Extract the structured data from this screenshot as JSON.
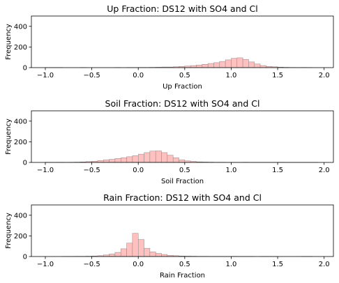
{
  "chart_data": [
    {
      "type": "histogram",
      "title": "Up Fraction: DS12 with SO4 and Cl",
      "xlabel": "Up Fraction",
      "ylabel": "Frequency",
      "xlim": [
        -1.15,
        2.1
      ],
      "ylim": [
        0,
        500
      ],
      "xticks": [
        -1.0,
        -0.5,
        0.0,
        0.5,
        1.0,
        1.5,
        2.0
      ],
      "xtick_labels": [
        "−1.0",
        "−0.5",
        "0.0",
        "0.5",
        "1.0",
        "1.5",
        "2.0"
      ],
      "yticks": [
        0,
        200,
        400
      ],
      "ytick_labels": [
        "0",
        "200",
        "400"
      ],
      "bin_edges_start": -1.0,
      "bin_width": 0.0625,
      "bar_color": "#ffc0c0",
      "counts": [
        1,
        1,
        1,
        0,
        0,
        0,
        1,
        0,
        0,
        0,
        0,
        0,
        1,
        0,
        1,
        1,
        2,
        2,
        3,
        4,
        6,
        6,
        8,
        12,
        15,
        20,
        25,
        32,
        40,
        48,
        60,
        75,
        90,
        95,
        80,
        55,
        35,
        20,
        12,
        8,
        5,
        3,
        2,
        1,
        2,
        1,
        0,
        0
      ]
    },
    {
      "type": "histogram",
      "title": "Soil Fraction: DS12 with SO4 and Cl",
      "xlabel": "Soil Fraction",
      "ylabel": "Frequency",
      "xlim": [
        -1.15,
        2.1
      ],
      "ylim": [
        0,
        500
      ],
      "xticks": [
        -1.0,
        -0.5,
        0.0,
        0.5,
        1.0,
        1.5,
        2.0
      ],
      "xtick_labels": [
        "−1.0",
        "−0.5",
        "0.0",
        "0.5",
        "1.0",
        "1.5",
        "2.0"
      ],
      "yticks": [
        0,
        200,
        400
      ],
      "ytick_labels": [
        "0",
        "200",
        "400"
      ],
      "bin_edges_start": -1.0,
      "bin_width": 0.0625,
      "bar_color": "#ffc0c0",
      "counts": [
        2,
        1,
        2,
        1,
        2,
        3,
        5,
        8,
        12,
        18,
        25,
        30,
        38,
        45,
        55,
        65,
        80,
        95,
        110,
        112,
        95,
        70,
        45,
        25,
        15,
        10,
        6,
        4,
        3,
        2,
        2,
        1,
        1,
        1,
        2,
        1,
        1,
        1,
        1,
        1,
        2,
        1,
        1,
        1,
        1,
        1,
        1,
        0
      ]
    },
    {
      "type": "histogram",
      "title": "Rain Fraction: DS12 with SO4 and Cl",
      "xlabel": "Rain Fraction",
      "ylabel": "Frequency",
      "xlim": [
        -1.15,
        2.1
      ],
      "ylim": [
        0,
        500
      ],
      "xticks": [
        -1.0,
        -0.5,
        0.0,
        0.5,
        1.0,
        1.5,
        2.0
      ],
      "xtick_labels": [
        "−1.0",
        "−0.5",
        "0.0",
        "0.5",
        "1.0",
        "1.5",
        "2.0"
      ],
      "yticks": [
        0,
        200,
        400
      ],
      "ytick_labels": [
        "0",
        "200",
        "400"
      ],
      "bin_edges_start": -1.0,
      "bin_width": 0.0625,
      "bar_color": "#ffc0c0",
      "counts": [
        0,
        0,
        0,
        1,
        1,
        2,
        2,
        3,
        5,
        8,
        15,
        25,
        40,
        75,
        130,
        225,
        165,
        80,
        45,
        30,
        20,
        12,
        8,
        5,
        4,
        3,
        2,
        2,
        1,
        1,
        1,
        1,
        2,
        1,
        1,
        1,
        0,
        1,
        1,
        1,
        0,
        0,
        0,
        0,
        1,
        1,
        0,
        0
      ]
    }
  ]
}
